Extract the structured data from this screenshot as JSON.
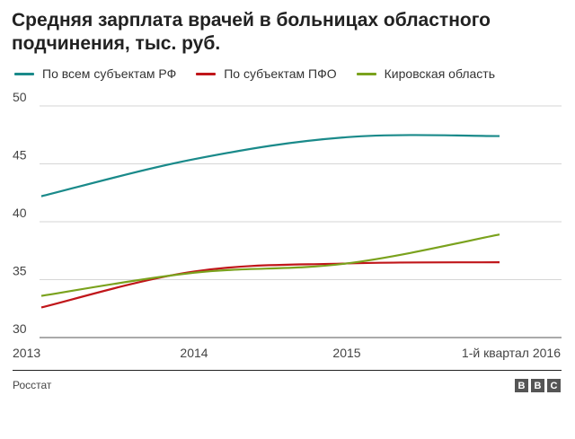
{
  "header": {
    "title": "Средняя зарплата врачей в больницах областного подчинения, тыс. руб."
  },
  "footer": {
    "source": "Росстат",
    "logo_letters": [
      "B",
      "B",
      "C"
    ]
  },
  "chart_data": {
    "type": "line",
    "title": "Средняя зарплата врачей в больницах областного подчинения, тыс. руб.",
    "xlabel": "",
    "ylabel": "",
    "categories": [
      "2013",
      "2014",
      "2015",
      "1-й квартал 2016"
    ],
    "ylim": [
      30,
      50
    ],
    "yticks": [
      30,
      35,
      40,
      45,
      50
    ],
    "grid": true,
    "legend_position": "top",
    "series": [
      {
        "name": "По всем субъектам РФ",
        "color": "#1a8a8a",
        "values": [
          42.2,
          45.4,
          47.3,
          47.4
        ]
      },
      {
        "name": "По субъектам ПФО",
        "color": "#c0161a",
        "values": [
          32.6,
          35.7,
          36.4,
          36.5
        ]
      },
      {
        "name": "Кировская область",
        "color": "#7aa21d",
        "values": [
          33.6,
          35.6,
          36.4,
          38.9
        ]
      }
    ]
  }
}
